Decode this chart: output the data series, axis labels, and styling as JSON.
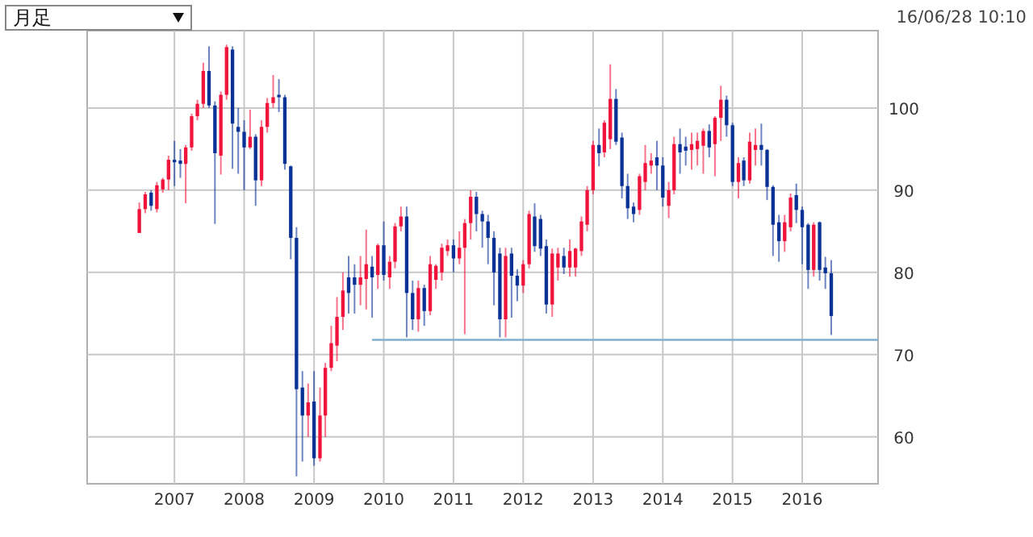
{
  "chart_data": {
    "type": "candlestick",
    "xlim": [
      "2005-10",
      "2017-02"
    ],
    "xticks": [
      "2007",
      "2008",
      "2009",
      "2010",
      "2011",
      "2012",
      "2013",
      "2014",
      "2015",
      "2016"
    ],
    "ylim": [
      54.3,
      109.4
    ],
    "yticks": [
      60,
      70,
      80,
      90,
      100
    ],
    "grid": true,
    "annotations": [
      "月足",
      "16/06/28 10:10"
    ],
    "colors": [
      "#f0143c",
      "#f0143c",
      "#0a3296",
      "#f0143c",
      "#f0143c",
      "#f0143c",
      "#0a3296",
      "#0a3296",
      "#f0143c",
      "#f0143c",
      "#f0143c",
      "#f0143c",
      "#0a3296",
      "#0a3296",
      "#f0143c",
      "#f0143c",
      "#0a3296",
      "#0a3296",
      "#0a3296",
      "#f0143c",
      "#0a3296",
      "#f0143c",
      "#f0143c",
      "#f0143c",
      "#0a3296",
      "#0a3296",
      "#0a3296",
      "#0a3296",
      "#0a3296",
      "#f0143c",
      "#0a3296",
      "#f0143c",
      "#f0143c",
      "#f0143c",
      "#f0143c",
      "#f0143c",
      "#0a3296",
      "#0a3296",
      "#f0143c",
      "#f0143c",
      "#0a3296",
      "#f0143c",
      "#0a3296",
      "#f0143c",
      "#f0143c",
      "#f0143c",
      "#0a3296",
      "#0a3296",
      "#f0143c",
      "#0a3296",
      "#f0143c",
      "#f0143c",
      "#f0143c",
      "#f0143c",
      "#0a3296",
      "#f0143c",
      "#f0143c",
      "#f0143c",
      "#0a3296",
      "#0a3296",
      "#0a3296",
      "#0a3296",
      "#0a3296",
      "#f0143c",
      "#0a3296",
      "#0a3296",
      "#f0143c",
      "#f0143c",
      "#0a3296",
      "#0a3296",
      "#0a3296",
      "#f0143c",
      "#f0143c",
      "#0a3296",
      "#f0143c",
      "#f0143c",
      "#f0143c",
      "#f0143c",
      "#f0143c",
      "#0a3296",
      "#f0143c",
      "#f0143c",
      "#0a3296",
      "#0a3296",
      "#0a3296",
      "#0a3296",
      "#f0143c",
      "#f0143c",
      "#f0143c",
      "#0a3296",
      "#0a3296",
      "#f0143c",
      "#f0143c",
      "#0a3296",
      "#0a3296",
      "#f0143c",
      "#f0143c",
      "#f0143c",
      "#0a3296",
      "#f0143c",
      "#f0143c",
      "#0a3296",
      "#0a3296",
      "#f0143c",
      "#0a3296",
      "#f0143c",
      "#f0143c",
      "#0a3296",
      "#0a3296",
      "#0a3296",
      "#0a3296",
      "#f0143c",
      "#f0143c",
      "#0a3296",
      "#0a3296",
      "#0a3296",
      "#f0143c",
      "#0a3296",
      "#0a3296",
      "#0a3296"
    ],
    "x": [
      "2006-07",
      "2006-08",
      "2006-09",
      "2006-10",
      "2006-11",
      "2006-12",
      "2007-01",
      "2007-02",
      "2007-03",
      "2007-04",
      "2007-05",
      "2007-06",
      "2007-07",
      "2007-08",
      "2007-09",
      "2007-10",
      "2007-11",
      "2007-12",
      "2008-01",
      "2008-02",
      "2008-03",
      "2008-04",
      "2008-05",
      "2008-06",
      "2008-07",
      "2008-08",
      "2008-09",
      "2008-10",
      "2008-11",
      "2008-12",
      "2009-01",
      "2009-02",
      "2009-03",
      "2009-04",
      "2009-05",
      "2009-06",
      "2009-07",
      "2009-08",
      "2009-09",
      "2009-10",
      "2009-11",
      "2009-12",
      "2010-01",
      "2010-02",
      "2010-03",
      "2010-04",
      "2010-05",
      "2010-06",
      "2010-07",
      "2010-08",
      "2010-09",
      "2010-10",
      "2010-11",
      "2010-12",
      "2011-01",
      "2011-02",
      "2011-03",
      "2011-04",
      "2011-05",
      "2011-06",
      "2011-07",
      "2011-08",
      "2011-09",
      "2011-10",
      "2011-11",
      "2011-12",
      "2012-01",
      "2012-02",
      "2012-03",
      "2012-04",
      "2012-05",
      "2012-06",
      "2012-07",
      "2012-08",
      "2012-09",
      "2012-10",
      "2012-11",
      "2012-12",
      "2013-01",
      "2013-02",
      "2013-03",
      "2013-04",
      "2013-05",
      "2013-06",
      "2013-07",
      "2013-08",
      "2013-09",
      "2013-10",
      "2013-11",
      "2013-12",
      "2014-01",
      "2014-02",
      "2014-03",
      "2014-04",
      "2014-05",
      "2014-06",
      "2014-07",
      "2014-08",
      "2014-09",
      "2014-10",
      "2014-11",
      "2014-12",
      "2015-01",
      "2015-02",
      "2015-03",
      "2015-04",
      "2015-05",
      "2015-06",
      "2015-07",
      "2015-08",
      "2015-09",
      "2015-10",
      "2015-11",
      "2015-12",
      "2016-01",
      "2016-02",
      "2016-03",
      "2016-04",
      "2016-05",
      "2016-06"
    ],
    "ohlc": [
      [
        84.8,
        88.5,
        84.8,
        87.7
      ],
      [
        87.7,
        89.8,
        87.2,
        89.5
      ],
      [
        89.7,
        90,
        87.5,
        88.1
      ],
      [
        87.7,
        91,
        87.3,
        90.6
      ],
      [
        90.1,
        91.5,
        89.7,
        91.3
      ],
      [
        91.3,
        94.2,
        90,
        93.7
      ],
      [
        93.7,
        96,
        90.5,
        93.4
      ],
      [
        93.6,
        95,
        91.5,
        93.2
      ],
      [
        93.2,
        95.5,
        88.4,
        95.2
      ],
      [
        95.2,
        99.3,
        94.8,
        99
      ],
      [
        99,
        101,
        98.5,
        100.5
      ],
      [
        100.5,
        105.5,
        100,
        104.5
      ],
      [
        104.5,
        107.5,
        100,
        100.3
      ],
      [
        100.3,
        100.8,
        85.9,
        94.5
      ],
      [
        94.2,
        102,
        91.9,
        101.6
      ],
      [
        101.6,
        107.7,
        101,
        107.4
      ],
      [
        107.1,
        107.5,
        92.6,
        98.1
      ],
      [
        97.7,
        100,
        92,
        97.1
      ],
      [
        97.1,
        98.5,
        90,
        95.2
      ],
      [
        95.2,
        99.8,
        95,
        96.5
      ],
      [
        96.5,
        96.8,
        88.1,
        91.2
      ],
      [
        91.2,
        98.5,
        90.5,
        97.7
      ],
      [
        97.7,
        101.2,
        97,
        100.6
      ],
      [
        100.6,
        104,
        100,
        101.3
      ],
      [
        101.6,
        103.5,
        99.5,
        101.3
      ],
      [
        101.3,
        101.6,
        92.5,
        93.2
      ],
      [
        92.9,
        93,
        81.6,
        84.2
      ],
      [
        84.2,
        85.5,
        55.2,
        65.8
      ],
      [
        66,
        68,
        57,
        62.6
      ],
      [
        62.6,
        66.5,
        60,
        64.2
      ],
      [
        64.3,
        68,
        56.5,
        57.4
      ],
      [
        57.4,
        66,
        57,
        62.6
      ],
      [
        62.6,
        69,
        60,
        68.4
      ],
      [
        68.4,
        73.5,
        68,
        71.4
      ],
      [
        71.1,
        77,
        69.2,
        74.6
      ],
      [
        74.6,
        80,
        73,
        77.8
      ],
      [
        79.4,
        82,
        75,
        77.5
      ],
      [
        79.4,
        81,
        75,
        78.5
      ],
      [
        78.5,
        82,
        76,
        79.4
      ],
      [
        79.2,
        85.2,
        75.5,
        81
      ],
      [
        80.7,
        82,
        74.5,
        79.4
      ],
      [
        79.7,
        83.5,
        78,
        83.3
      ],
      [
        83.3,
        86.2,
        79,
        79.7
      ],
      [
        79.4,
        82,
        78,
        81.3
      ],
      [
        81.3,
        86,
        80.5,
        85.6
      ],
      [
        85.6,
        88,
        85,
        86.8
      ],
      [
        86.8,
        88,
        72.1,
        77.5
      ],
      [
        77.5,
        79,
        73,
        74.3
      ],
      [
        74.3,
        79,
        72.8,
        78.1
      ],
      [
        78.1,
        78.5,
        73.5,
        75.3
      ],
      [
        75.3,
        82,
        74.8,
        81
      ],
      [
        79.1,
        81,
        78,
        80.8
      ],
      [
        80,
        83.5,
        79,
        83
      ],
      [
        82.6,
        84,
        82,
        83.3
      ],
      [
        83.3,
        84,
        80,
        81.7
      ],
      [
        81.7,
        85,
        81,
        83
      ],
      [
        83,
        86.5,
        72.5,
        86
      ],
      [
        86,
        90,
        84,
        89.2
      ],
      [
        89.2,
        89.8,
        85,
        87.1
      ],
      [
        87.1,
        87.5,
        83,
        86.2
      ],
      [
        86.2,
        87,
        81,
        84.2
      ],
      [
        84.2,
        85,
        76,
        80
      ],
      [
        82.3,
        83,
        72.1,
        74.3
      ],
      [
        74.3,
        83,
        72.1,
        82
      ],
      [
        82.3,
        83,
        74.5,
        79.6
      ],
      [
        79.6,
        80.4,
        76.5,
        78.4
      ],
      [
        78.4,
        81.5,
        77.5,
        81
      ],
      [
        81,
        87.5,
        80.5,
        87.1
      ],
      [
        86.8,
        88.4,
        82.5,
        83.2
      ],
      [
        86.5,
        87,
        82,
        82.9
      ],
      [
        83.2,
        84,
        75,
        76.1
      ],
      [
        76.1,
        82.9,
        74.6,
        82.3
      ],
      [
        80.6,
        83,
        79,
        82.3
      ],
      [
        82,
        83,
        79.8,
        80.6
      ],
      [
        80.6,
        84,
        79.5,
        82.6
      ],
      [
        80.6,
        83,
        79.5,
        82.9
      ],
      [
        82.6,
        86.8,
        82,
        86.2
      ],
      [
        85.8,
        90.5,
        85,
        90
      ],
      [
        90,
        96,
        89.5,
        95.5
      ],
      [
        95.5,
        97.5,
        92.9,
        94.5
      ],
      [
        94.6,
        98.5,
        94,
        98.2
      ],
      [
        96.2,
        105.3,
        95,
        101.1
      ],
      [
        101.1,
        102.3,
        95.5,
        95.9
      ],
      [
        96.4,
        97,
        89,
        90.5
      ],
      [
        90.5,
        92,
        86.5,
        87.8
      ],
      [
        88,
        88.5,
        86.1,
        87.1
      ],
      [
        87.6,
        92,
        87,
        91.7
      ],
      [
        91,
        95.5,
        90,
        93.3
      ],
      [
        93,
        94.5,
        92,
        93.6
      ],
      [
        94,
        96,
        90,
        93
      ],
      [
        93,
        94,
        88,
        89.1
      ],
      [
        88.1,
        91,
        86.6,
        90
      ],
      [
        90,
        96.5,
        89.5,
        95.6
      ],
      [
        95.6,
        97.5,
        92,
        94.6
      ],
      [
        95.3,
        96.5,
        93,
        94.8
      ],
      [
        94.9,
        97,
        92.5,
        95.6
      ],
      [
        95,
        97,
        93,
        96
      ],
      [
        95.4,
        97.5,
        92,
        97.2
      ],
      [
        97.2,
        98,
        94,
        95.2
      ],
      [
        95.6,
        99,
        91.7,
        98.8
      ],
      [
        98.8,
        102.7,
        96,
        101
      ],
      [
        101,
        101.5,
        96.5,
        97.9
      ],
      [
        97.9,
        98.2,
        90.5,
        91
      ],
      [
        91,
        94,
        89,
        93.3
      ],
      [
        93.6,
        94,
        90.5,
        91.2
      ],
      [
        91.2,
        97,
        90.8,
        95.9
      ],
      [
        94.9,
        97.5,
        93,
        95.5
      ],
      [
        95.5,
        98.1,
        93,
        94.9
      ],
      [
        94.9,
        95,
        88.8,
        90.4
      ],
      [
        90.4,
        90.6,
        82,
        85.8
      ],
      [
        86.1,
        87,
        81.3,
        83.8
      ],
      [
        83.8,
        87,
        82.5,
        86.1
      ],
      [
        85.5,
        89.6,
        85,
        89.1
      ],
      [
        89.4,
        90.8,
        86,
        87.6
      ],
      [
        87.6,
        88,
        81,
        85.5
      ],
      [
        85.8,
        86,
        78,
        80.3
      ],
      [
        80.3,
        86.1,
        79.5,
        85.8
      ],
      [
        86.1,
        86.2,
        79,
        80.3
      ],
      [
        80.6,
        81.9,
        78,
        79.9
      ],
      [
        79.9,
        81.5,
        72.4,
        74.7
      ]
    ],
    "series": [
      {
        "type": "line",
        "color": "#7fb0cc",
        "x": [
          "2009-11",
          "2017-02"
        ],
        "values": [
          71.8,
          71.8
        ]
      }
    ]
  }
}
